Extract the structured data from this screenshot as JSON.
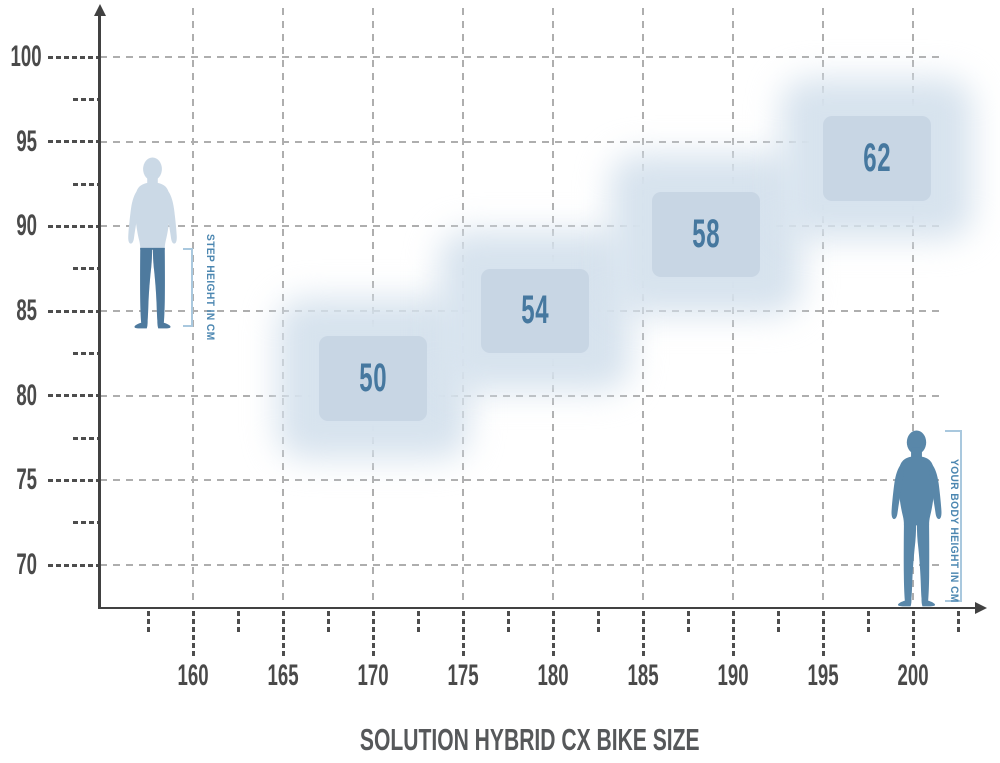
{
  "page": {
    "title": "SOLUTION HYBRID CX BIKE SIZE"
  },
  "annotations": {
    "step_height_label": "STEP HEIGHT IN CM",
    "body_height_label": "YOUR BODY HEIGHT IN CM"
  },
  "chart_data": {
    "type": "scatter",
    "title": "SOLUTION HYBRID CX BIKE SIZE",
    "xlabel": "YOUR BODY HEIGHT IN CM",
    "ylabel": "STEP HEIGHT IN CM",
    "xlim": [
      155,
      203
    ],
    "ylim": [
      67.5,
      103
    ],
    "grid": true,
    "legend": false,
    "x_major_ticks": [
      160,
      165,
      170,
      175,
      180,
      185,
      190,
      195,
      200
    ],
    "x_minor_ticks": [
      157.5,
      162.5,
      167.5,
      172.5,
      177.5,
      182.5,
      187.5,
      192.5,
      197.5,
      202.5
    ],
    "y_major_ticks": [
      70,
      75,
      80,
      85,
      90,
      95,
      100
    ],
    "y_minor_ticks": [
      72.5,
      77.5,
      82.5,
      87.5,
      92.5,
      97.5
    ],
    "series": [
      {
        "name": "frame size 50",
        "label": "50",
        "body_height_cm": [
          167,
          173
        ],
        "step_height_cm": [
          78.5,
          83.5
        ]
      },
      {
        "name": "frame size 54",
        "label": "54",
        "body_height_cm": [
          176,
          182
        ],
        "step_height_cm": [
          82.5,
          87.5
        ]
      },
      {
        "name": "frame size 58",
        "label": "58",
        "body_height_cm": [
          185.5,
          191.5
        ],
        "step_height_cm": [
          87,
          92
        ]
      },
      {
        "name": "frame size 62",
        "label": "62",
        "body_height_cm": [
          195,
          201
        ],
        "step_height_cm": [
          91.5,
          96.5
        ]
      }
    ]
  },
  "colors": {
    "box_fill": "#c8d6e4",
    "box_glow": "#d7e3ee",
    "size_number": "#46789f",
    "grid_line": "#aeaeae",
    "tick_dash": "#4d4d4d",
    "axis_line": "#414141",
    "tick_label": "#4a4a4a",
    "title_text": "#56585a",
    "figure_light": "#cbd9e6",
    "figure_dark": "#4e7a9e",
    "figure_solid": "#5987a9",
    "bracket": "#a9c8de",
    "annotation_text": "#4c87b1"
  }
}
